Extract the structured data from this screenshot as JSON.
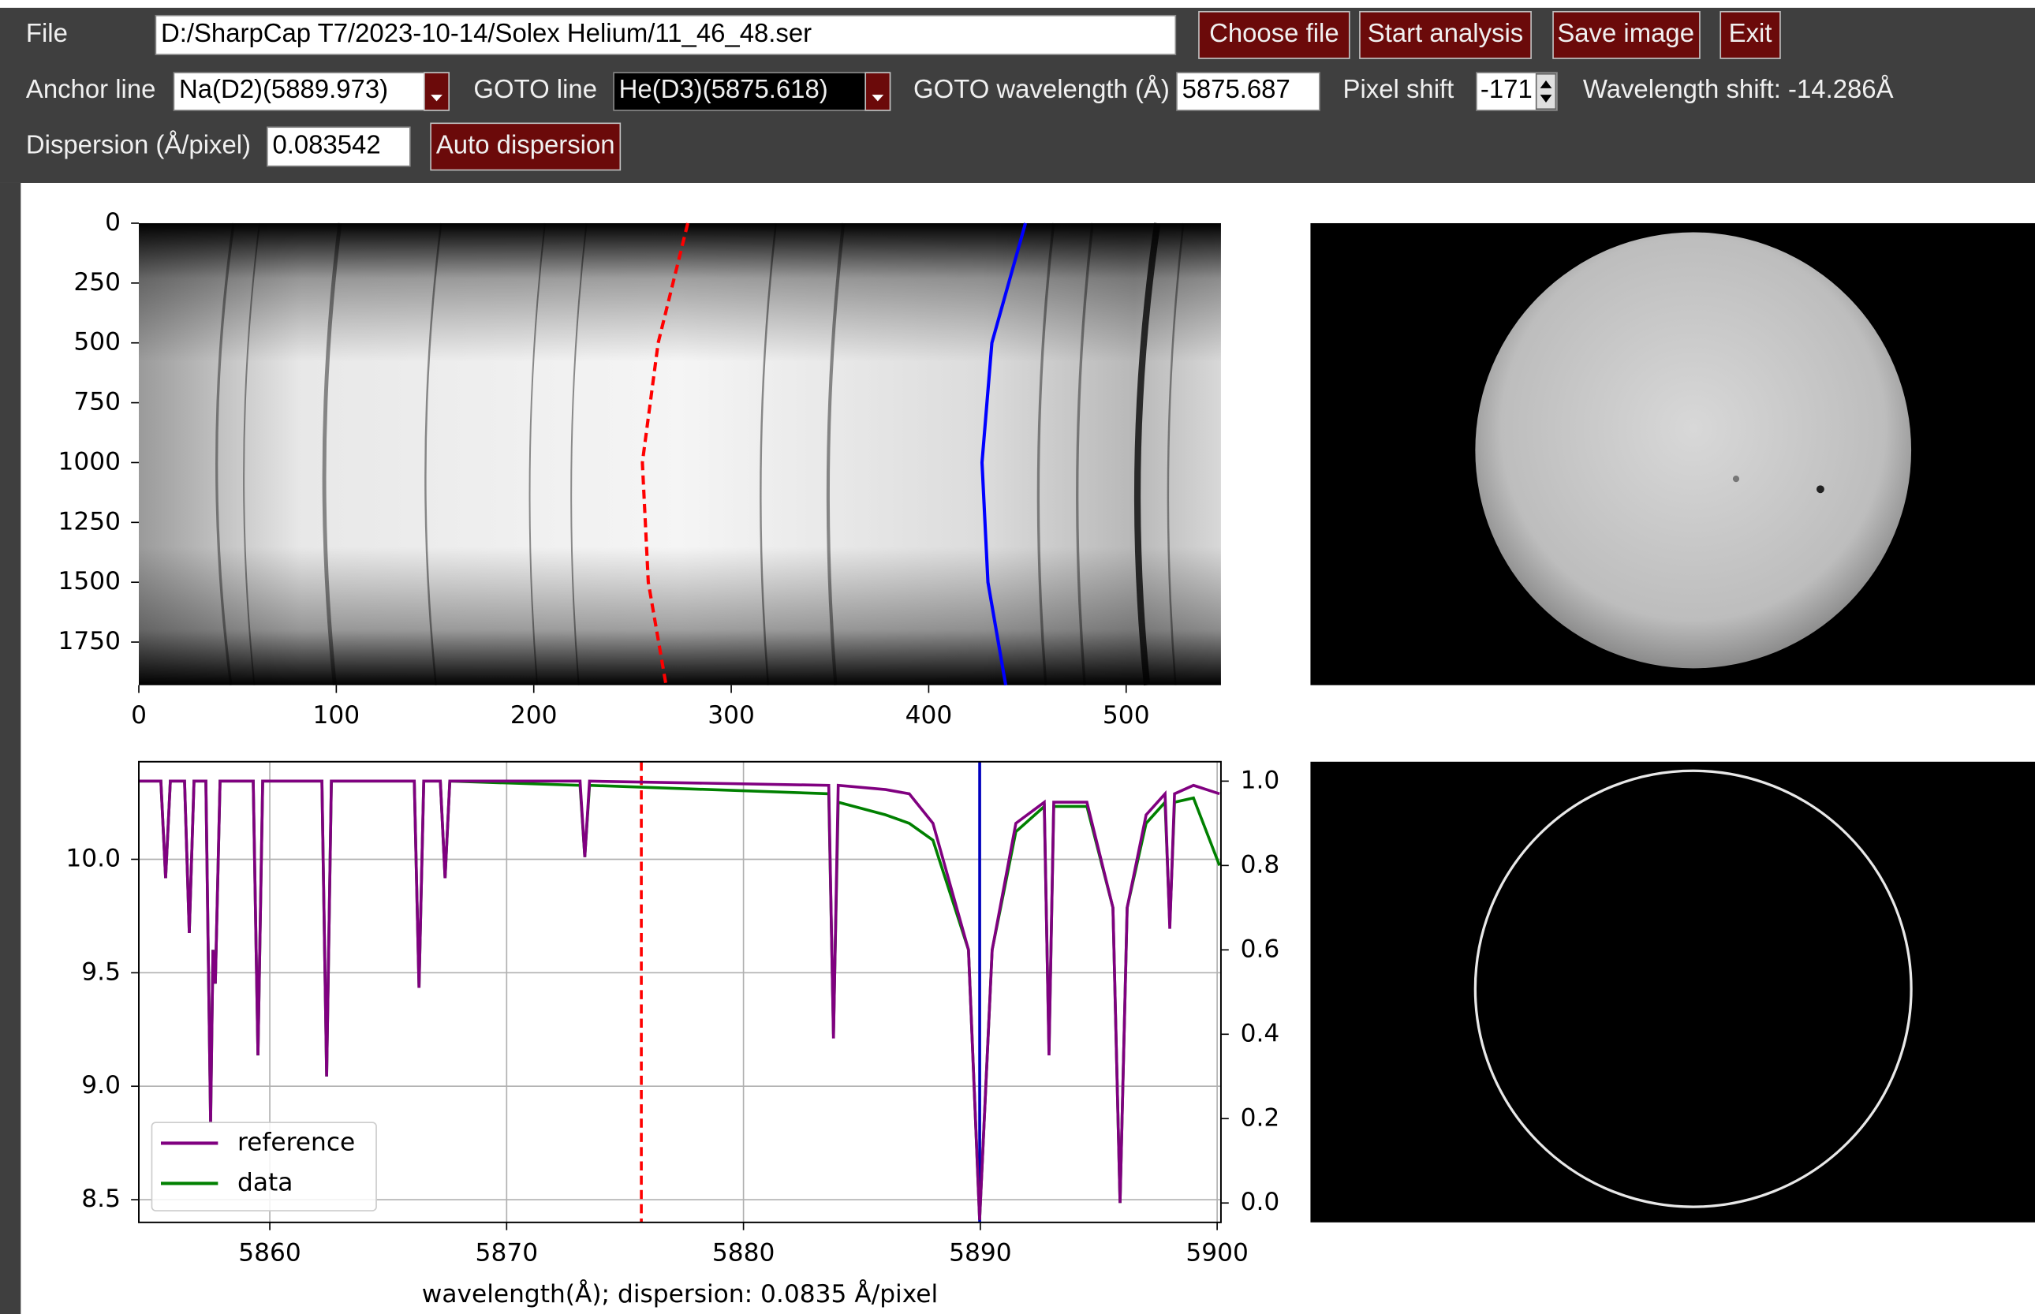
{
  "toolbar": {
    "file_label": "File",
    "file_path": "D:/SharpCap T7/2023-10-14/Solex Helium/11_46_48.ser",
    "buttons": [
      "Choose file",
      "Start analysis",
      "Save image",
      "Exit"
    ],
    "anchor_label": "Anchor line",
    "anchor_value": "Na(D2)(5889.973)",
    "goto_line_label": "GOTO line",
    "goto_line_value": "He(D3)(5875.618)",
    "goto_wl_label": "GOTO wavelength (Å)",
    "goto_wl_value": "5875.687",
    "pixel_shift_label": "Pixel shift",
    "pixel_shift_value": "-171",
    "wl_shift": "Wavelength shift: -14.286Å",
    "dispersion_label": "Dispersion (Å/pixel)",
    "dispersion_value": "0.083542",
    "auto_button": "Auto dispersion"
  },
  "chart_data": [
    {
      "type": "image",
      "xlim": [
        0,
        548
      ],
      "ylim": [
        1930,
        0
      ],
      "xticks": [
        0,
        100,
        200,
        300,
        400,
        500
      ],
      "yticks": [
        0,
        250,
        500,
        750,
        1000,
        1250,
        1500,
        1750
      ],
      "curves": [
        {
          "color": "#ff0000",
          "style": "dashed",
          "x": [
            278,
            263,
            255,
            258,
            267
          ],
          "y": [
            0,
            500,
            1000,
            1500,
            1930
          ]
        },
        {
          "color": "#0000ff",
          "style": "solid",
          "x": [
            449,
            432,
            427,
            430,
            439
          ],
          "y": [
            0,
            500,
            1000,
            1500,
            1930
          ]
        }
      ]
    },
    {
      "type": "line",
      "xlabel": "wavelength(Å); dispersion: 0.0835 Å/pixel",
      "xlim": [
        5854.47,
        5900.16
      ],
      "ylim": [
        8.4,
        10.43
      ],
      "y2lim": [
        -0.046,
        1.046
      ],
      "xticks": [
        5860,
        5870,
        5880,
        5890,
        5900
      ],
      "yticks": [
        8.5,
        {
          "value": 9,
          "label": "9.0"
        },
        9.5,
        {
          "value": 10,
          "label": "10.0"
        }
      ],
      "y2ticks": [
        {
          "value": 0,
          "label": "0.0"
        },
        0.2,
        0.4,
        0.6,
        0.8,
        {
          "value": 1,
          "label": "1.0"
        }
      ],
      "grid": true,
      "legend": "lower left",
      "x": [
        5854.5,
        5855.4,
        5855.6,
        5855.8,
        5856.4,
        5856.6,
        5856.8,
        5857.3,
        5857.5,
        5857.6,
        5857.7,
        5857.9,
        5859.3,
        5859.5,
        5859.7,
        5862.2,
        5862.4,
        5862.6,
        5866.1,
        5866.3,
        5866.5,
        5867.2,
        5867.4,
        5867.6,
        5873.1,
        5873.3,
        5873.5,
        5883.6,
        5883.8,
        5884.0,
        5886,
        5887,
        5888,
        5889.5,
        5889.97,
        5890.5,
        5891.5,
        5892.7,
        5892.9,
        5893.1,
        5894.5,
        5895.6,
        5895.9,
        5896.2,
        5897,
        5897.8,
        5898,
        5898.2,
        5899,
        5900.1
      ],
      "series": [
        {
          "name": "reference",
          "color": "#800080",
          "axis": "y2",
          "values": [
            1.0,
            1.0,
            0.77,
            1.0,
            1.0,
            0.64,
            1.0,
            1.0,
            0.19,
            0.6,
            0.52,
            1.0,
            1.0,
            0.35,
            1.0,
            1.0,
            0.3,
            1.0,
            1.0,
            0.51,
            1.0,
            1.0,
            0.77,
            1.0,
            1.0,
            0.82,
            1.0,
            0.99,
            0.39,
            0.99,
            0.98,
            0.97,
            0.9,
            0.6,
            -0.04,
            0.6,
            0.9,
            0.95,
            0.35,
            0.95,
            0.95,
            0.7,
            0.0,
            0.7,
            0.92,
            0.97,
            0.65,
            0.97,
            0.99,
            0.97
          ]
        },
        {
          "name": "data",
          "color": "#008000",
          "axis": "y2",
          "values": [
            1.0,
            1.0,
            0.77,
            1.0,
            1.0,
            0.64,
            1.0,
            1.0,
            0.19,
            0.6,
            0.52,
            1.0,
            1.0,
            0.35,
            1.0,
            1.0,
            0.3,
            1.0,
            1.0,
            0.51,
            1.0,
            1.0,
            0.77,
            1.0,
            0.99,
            0.82,
            0.99,
            0.97,
            0.4,
            0.95,
            0.92,
            0.9,
            0.86,
            0.6,
            -0.04,
            0.6,
            0.88,
            0.94,
            0.36,
            0.94,
            0.94,
            0.7,
            0.0,
            0.7,
            0.9,
            0.95,
            0.66,
            0.95,
            0.96,
            0.8
          ]
        }
      ],
      "vlines": [
        {
          "x": 5875.687,
          "color": "#ff0000",
          "style": "dashed"
        },
        {
          "x": 5889.973,
          "color": "#0000c0",
          "style": "solid"
        }
      ]
    }
  ]
}
